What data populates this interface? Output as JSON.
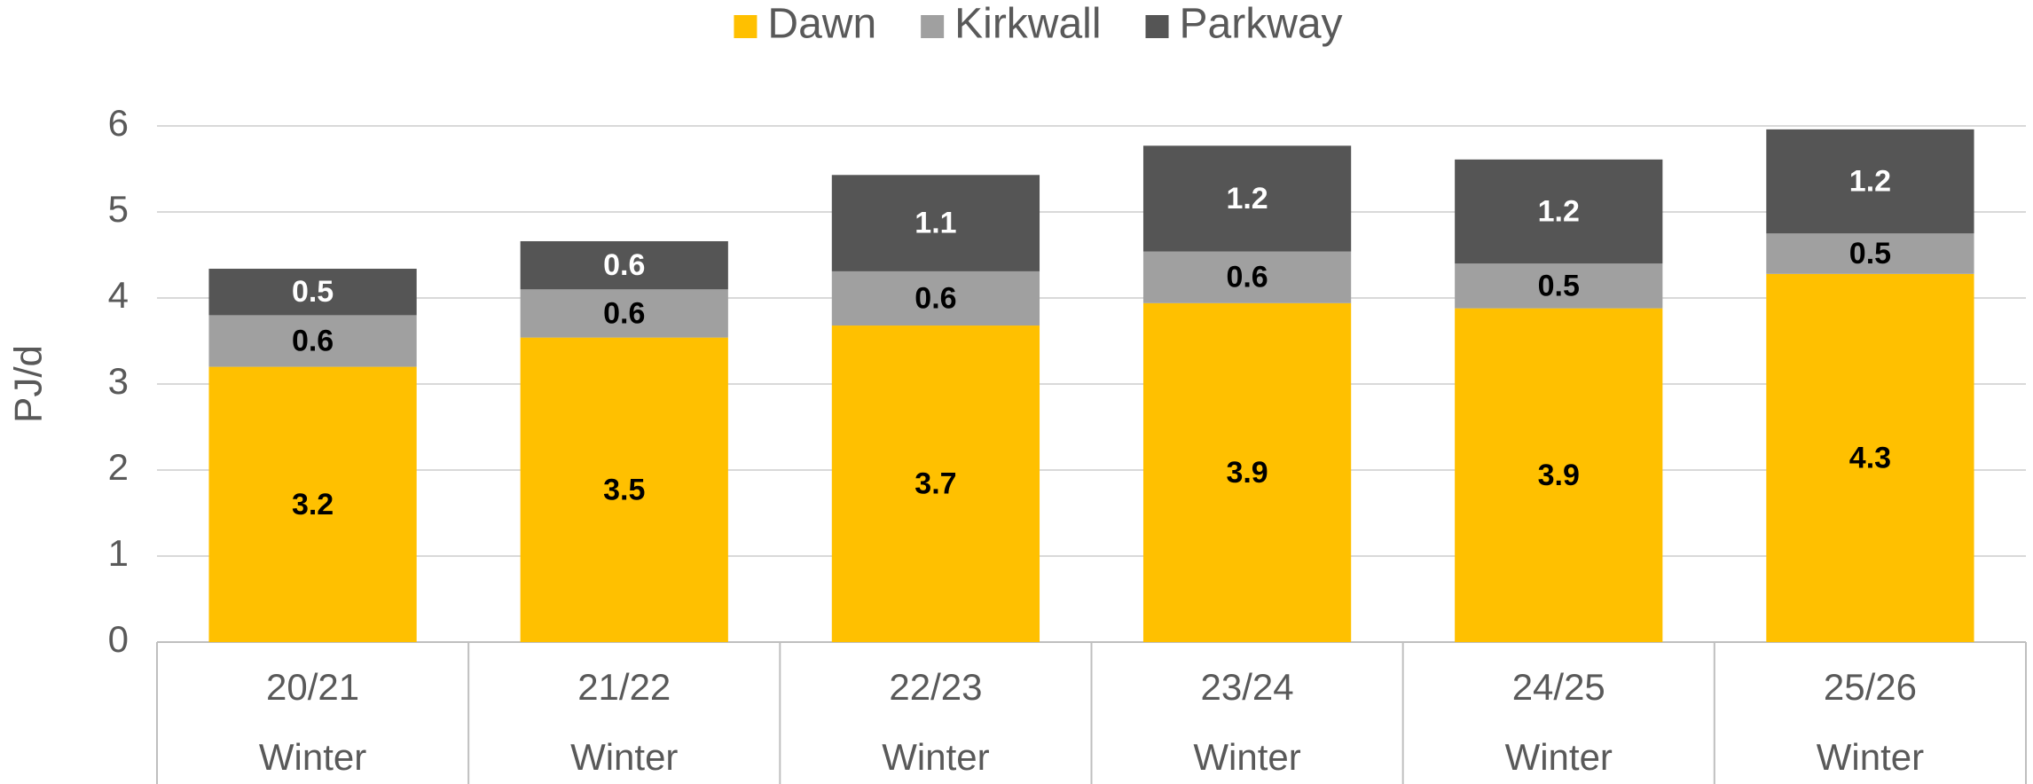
{
  "chart_data": {
    "type": "stacked_bar",
    "y_label": "PJ/d",
    "categories": [
      [
        "20/21",
        "Winter"
      ],
      [
        "21/22",
        "Winter"
      ],
      [
        "22/23",
        "Winter"
      ],
      [
        "23/24",
        "Winter"
      ],
      [
        "24/25",
        "Winter"
      ],
      [
        "25/26",
        "Winter"
      ]
    ],
    "series": [
      {
        "name": "Dawn",
        "color": "#FFC000",
        "label_color": "#000000",
        "values": [
          3.2,
          3.54,
          3.68,
          3.94,
          3.88,
          4.28
        ],
        "value_labels": [
          "3.2",
          "3.5",
          "3.7",
          "3.9",
          "3.9",
          "4.3"
        ]
      },
      {
        "name": "Kirkwall",
        "color": "#A0A0A0",
        "label_color": "#000000",
        "values": [
          0.6,
          0.56,
          0.63,
          0.6,
          0.52,
          0.47
        ],
        "value_labels": [
          "0.6",
          "0.6",
          "0.6",
          "0.6",
          "0.5",
          "0.5"
        ]
      },
      {
        "name": "Parkway",
        "color": "#555555",
        "label_color": "#FFFFFF",
        "values": [
          0.54,
          0.56,
          1.12,
          1.23,
          1.21,
          1.21
        ],
        "value_labels": [
          "0.5",
          "0.6",
          "1.1",
          "1.2",
          "1.2",
          "1.2"
        ]
      }
    ],
    "ylim": [
      0,
      6
    ],
    "yticks": [
      0,
      1,
      2,
      3,
      4,
      5,
      6
    ],
    "grid": true,
    "legend": "top"
  }
}
